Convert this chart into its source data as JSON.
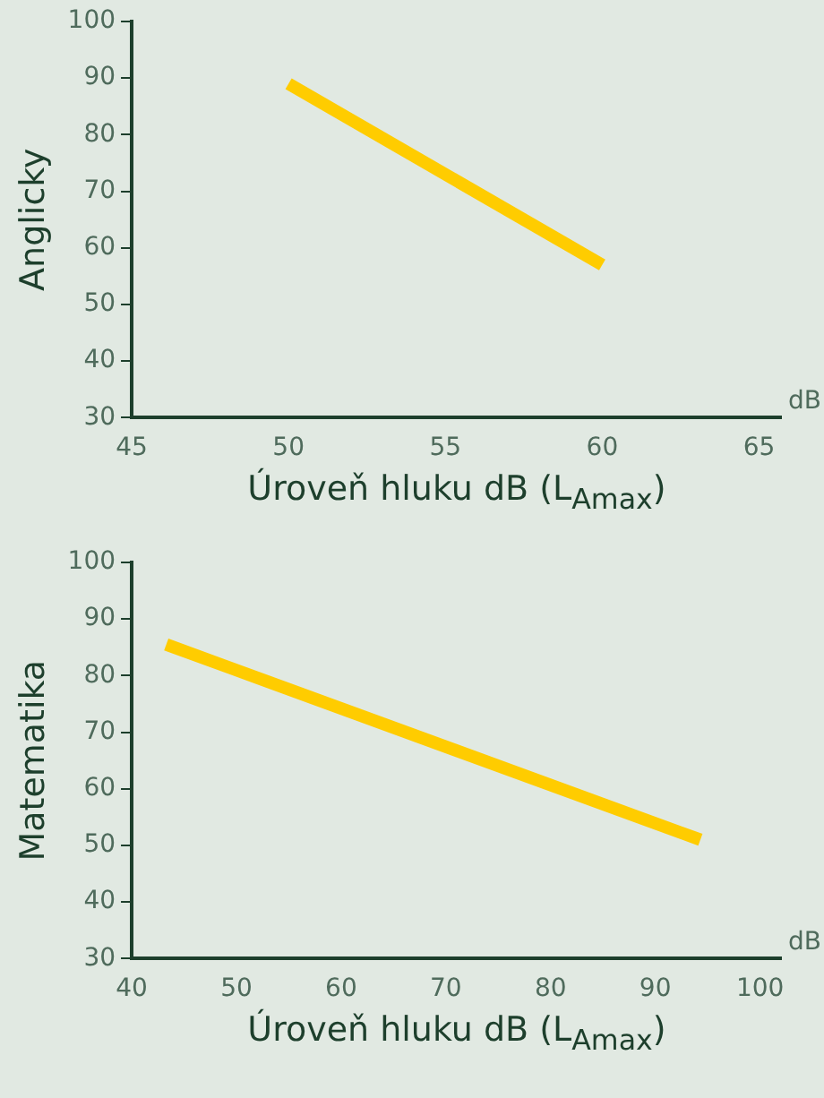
{
  "chart_data": [
    {
      "type": "line",
      "ylabel": "Anglicky",
      "xlabel": "Úroveň hluku dB (L$_{Amax}$)",
      "x": [
        50,
        60
      ],
      "values": [
        89,
        57
      ],
      "color": "#ffcc00",
      "marker": "none",
      "xlim": [
        45,
        65.7
      ],
      "xticks": [
        45,
        50,
        55,
        60,
        65
      ],
      "ylim": [
        30,
        100
      ],
      "yticks": [
        30,
        40,
        50,
        60,
        70,
        80,
        90,
        100
      ],
      "annotations": [
        "dB"
      ]
    },
    {
      "type": "line",
      "ylabel": "Matematika",
      "xlabel": "Úroveň hluku dB (L$_{Amax}$)",
      "x": [
        43.3,
        94.3
      ],
      "values": [
        85.5,
        51
      ],
      "color": "#ffcc00",
      "marker": "none",
      "xlim": [
        40,
        102
      ],
      "xticks": [
        40,
        50,
        60,
        70,
        80,
        90,
        100
      ],
      "ylim": [
        30,
        100
      ],
      "yticks": [
        30,
        40,
        50,
        60,
        70,
        80,
        90,
        100
      ],
      "annotations": [
        "dB"
      ]
    }
  ]
}
